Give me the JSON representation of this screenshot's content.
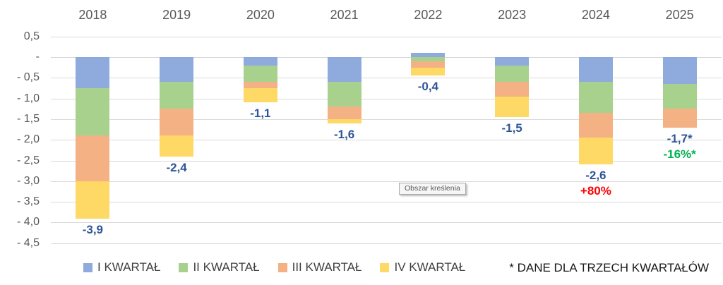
{
  "chart_data": {
    "type": "bar",
    "stacked": true,
    "grid": true,
    "legend_position": "bottom",
    "categories": [
      "2018",
      "2019",
      "2020",
      "2021",
      "2022",
      "2023",
      "2024",
      "2025"
    ],
    "series": [
      {
        "name": "I KWARTAŁ",
        "color": "#8FAADC",
        "values": [
          -0.75,
          -0.6,
          -0.2,
          -0.6,
          0.1,
          -0.2,
          -0.6,
          -0.65
        ]
      },
      {
        "name": "II KWARTAŁ",
        "color": "#A9D18E",
        "values": [
          -1.15,
          -0.65,
          -0.4,
          -0.6,
          -0.1,
          -0.4,
          -0.75,
          -0.6
        ]
      },
      {
        "name": "III KWARTAŁ",
        "color": "#F4B183",
        "values": [
          -1.1,
          -0.65,
          -0.15,
          -0.3,
          -0.15,
          -0.35,
          -0.6,
          -0.45
        ]
      },
      {
        "name": "IV KWARTAŁ",
        "color": "#FFD966",
        "values": [
          -0.9,
          -0.5,
          -0.35,
          -0.1,
          -0.2,
          -0.5,
          -0.65,
          null
        ]
      }
    ],
    "totals": [
      "-3,9",
      "-2,4",
      "-1,1",
      "-1,6",
      "-0,4",
      "-1,5",
      "-2,6",
      "-1,7*"
    ],
    "extra_labels": [
      {
        "category": "2024",
        "text": "+80%",
        "color": "#FF0000"
      },
      {
        "category": "2025",
        "text": "-16%*",
        "color": "#00B050"
      }
    ],
    "y_ticks": [
      {
        "value": 0.5,
        "label": "0,5"
      },
      {
        "value": 0.0,
        "label": "-"
      },
      {
        "value": -0.5,
        "label": "- 0,5"
      },
      {
        "value": -1.0,
        "label": "- 1,0"
      },
      {
        "value": -1.5,
        "label": "- 1,5"
      },
      {
        "value": -2.0,
        "label": "- 2,0"
      },
      {
        "value": -2.5,
        "label": "- 2,5"
      },
      {
        "value": -3.0,
        "label": "- 3,0"
      },
      {
        "value": -3.5,
        "label": "- 3,5"
      },
      {
        "value": -4.0,
        "label": "- 4,0"
      },
      {
        "value": -4.5,
        "label": "- 4,5"
      }
    ],
    "ylim": [
      -4.5,
      0.5
    ],
    "title": "",
    "xlabel": "",
    "ylabel": ""
  },
  "colors": {
    "total_label": "#2F5597",
    "gridline": "#D9D9D9",
    "axis_text": "#595959"
  },
  "plot_area_tooltip": "Obszar kreślenia",
  "footnote": "* DANE DLA TRZECH KWARTAŁÓW"
}
